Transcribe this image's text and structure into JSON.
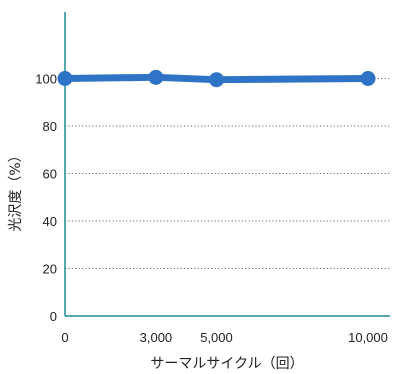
{
  "chart_data": {
    "type": "line",
    "xlabel": "サーマルサイクル（回）",
    "ylabel": "光沢度（%）",
    "x": [
      0,
      3000,
      5000,
      10000
    ],
    "x_tick_labels": [
      "0",
      "3,000",
      "5,000",
      "10,000"
    ],
    "y_ticks": [
      0,
      20,
      40,
      60,
      80,
      100
    ],
    "xlim": [
      0,
      10000
    ],
    "ylim": [
      0,
      100
    ],
    "grid": "horizontal dotted",
    "series": [
      {
        "values": [
          100,
          100.5,
          99.5,
          100
        ],
        "color": "#2f73c6"
      }
    ],
    "colors": {
      "axis": "#1f8a96",
      "grid": "#6a6a6a",
      "line": "#2f73c6"
    }
  }
}
